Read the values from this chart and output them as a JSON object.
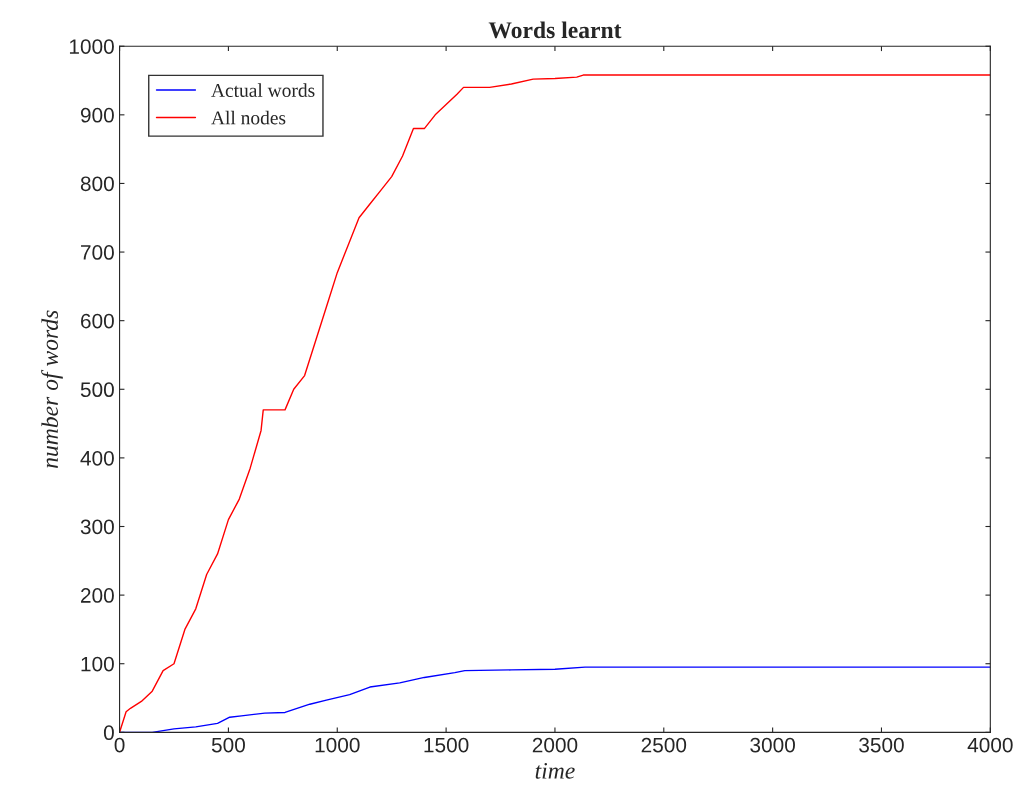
{
  "chart_data": {
    "type": "line",
    "title": "Words learnt",
    "xlabel": "time",
    "ylabel": "number of words",
    "xlim": [
      0,
      4000
    ],
    "ylim": [
      0,
      1000
    ],
    "xticks": [
      0,
      500,
      1000,
      1500,
      2000,
      2500,
      3000,
      3500,
      4000
    ],
    "yticks": [
      0,
      100,
      200,
      300,
      400,
      500,
      600,
      700,
      800,
      900,
      1000
    ],
    "grid": false,
    "legend": "top left",
    "series": [
      {
        "name": "Actual words",
        "color": "#0000ff",
        "x": [
          0,
          150,
          250,
          350,
          450,
          506,
          560,
          667,
          760,
          874,
          950,
          1057,
          1150,
          1287,
          1400,
          1540,
          1586,
          1800,
          2000,
          2138,
          4000
        ],
        "values": [
          0,
          0,
          5,
          8,
          13,
          22,
          24,
          28,
          29,
          41,
          47,
          55,
          66,
          72,
          80,
          87,
          90,
          91,
          92,
          95,
          95
        ]
      },
      {
        "name": "All nodes",
        "color": "#ff0000",
        "x": [
          0,
          30,
          50,
          100,
          150,
          200,
          250,
          300,
          350,
          400,
          450,
          500,
          550,
          600,
          650,
          660,
          760,
          800,
          850,
          900,
          950,
          1000,
          1050,
          1100,
          1150,
          1200,
          1250,
          1300,
          1350,
          1400,
          1450,
          1500,
          1550,
          1580,
          1700,
          1800,
          1900,
          2000,
          2100,
          2130,
          4000
        ],
        "values": [
          0,
          30,
          35,
          45,
          60,
          90,
          100,
          150,
          180,
          230,
          260,
          310,
          340,
          385,
          440,
          470,
          470,
          500,
          520,
          570,
          620,
          670,
          710,
          750,
          770,
          790,
          810,
          840,
          880,
          880,
          900,
          915,
          930,
          940,
          940,
          945,
          952,
          953,
          955,
          958,
          958
        ]
      }
    ]
  }
}
